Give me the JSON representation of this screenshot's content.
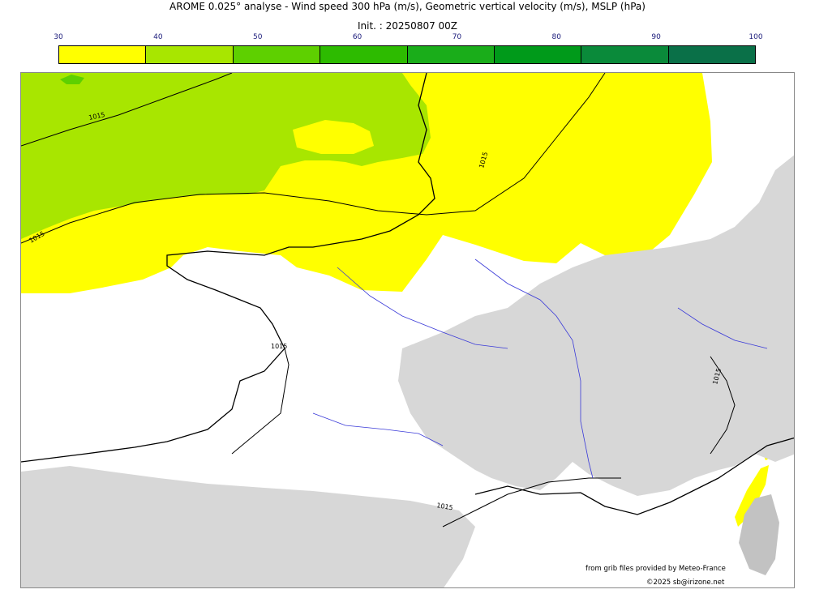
{
  "header": {
    "title": "AROME 0.025° analyse - Wind speed 300 hPa (m/s), Geometric vertical velocity (m/s), MSLP (hPa)",
    "init": "Init. : 20250807 00Z"
  },
  "colorbar": {
    "ticks": [
      "30",
      "40",
      "50",
      "60",
      "70",
      "80",
      "90",
      "100"
    ],
    "colors": [
      "#ffff00",
      "#a8e600",
      "#5ed000",
      "#2dbb00",
      "#1aad1a",
      "#009a1a",
      "#0a8a3a",
      "#0a7048"
    ]
  },
  "map": {
    "colors": {
      "wind_30_40": "#ffff00",
      "wind_40_50": "#a8e600",
      "wind_50_60": "#5ed000",
      "terrain": "#d7d7d7",
      "terrain_dark": "#c2c2c2",
      "coastline": "#000000",
      "rivers": "#3a3ad8"
    },
    "isobar_labels": [
      "1015",
      "1015",
      "1015",
      "1015",
      "1015",
      "1015"
    ]
  },
  "credits": {
    "source": "from grib files provided by Meteo-France",
    "copyright": "©2025 sb@irizone.net"
  }
}
